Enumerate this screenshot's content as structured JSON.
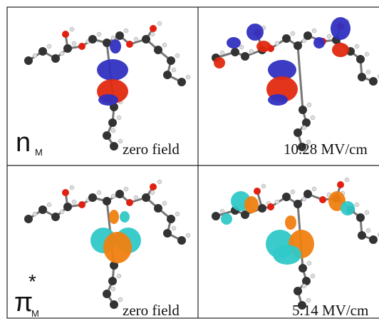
{
  "panels": [
    {
      "symbol": "n",
      "subscript": "M",
      "caption": "zero field"
    },
    {
      "caption": "10.28 MV/cm"
    },
    {
      "symbol": "π",
      "superscript": "*",
      "subscript": "M",
      "caption": "zero field"
    },
    {
      "caption": "5.14 MV/cm"
    }
  ]
}
